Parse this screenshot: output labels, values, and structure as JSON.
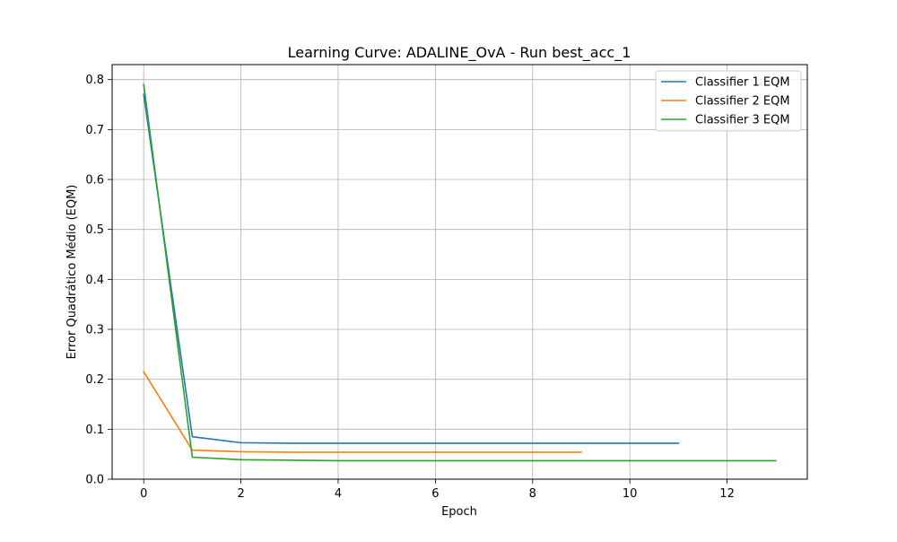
{
  "chart_data": {
    "type": "line",
    "title": "Learning Curve: ADALINE_OvA - Run best_acc_1",
    "xlabel": "Epoch",
    "ylabel": "Error Quadrático Médio (EQM)",
    "xlim": [
      -0.65,
      13.65
    ],
    "ylim": [
      0.0,
      0.83
    ],
    "xticks": [
      0,
      2,
      4,
      6,
      8,
      10,
      12
    ],
    "xtick_labels": [
      "0",
      "2",
      "4",
      "6",
      "8",
      "10",
      "12"
    ],
    "yticks": [
      0.0,
      0.1,
      0.2,
      0.3,
      0.4,
      0.5,
      0.6,
      0.7,
      0.8
    ],
    "ytick_labels": [
      "0.0",
      "0.1",
      "0.2",
      "0.3",
      "0.4",
      "0.5",
      "0.6",
      "0.7",
      "0.8"
    ],
    "grid": true,
    "legend_position": "top-right",
    "series": [
      {
        "name": "Classifier 1 EQM",
        "color": "#1f77b4",
        "x": [
          0,
          1,
          2,
          3,
          4,
          5,
          6,
          7,
          8,
          9,
          10,
          11
        ],
        "y": [
          0.77,
          0.085,
          0.073,
          0.072,
          0.072,
          0.072,
          0.072,
          0.072,
          0.072,
          0.072,
          0.072,
          0.072
        ]
      },
      {
        "name": "Classifier 2 EQM",
        "color": "#ff7f0e",
        "x": [
          0,
          1,
          2,
          3,
          4,
          5,
          6,
          7,
          8,
          9
        ],
        "y": [
          0.215,
          0.058,
          0.055,
          0.054,
          0.054,
          0.054,
          0.054,
          0.054,
          0.054,
          0.054
        ]
      },
      {
        "name": "Classifier 3 EQM",
        "color": "#2ca02c",
        "x": [
          0,
          1,
          2,
          3,
          4,
          5,
          6,
          7,
          8,
          9,
          10,
          11,
          12,
          13
        ],
        "y": [
          0.79,
          0.044,
          0.039,
          0.038,
          0.037,
          0.037,
          0.037,
          0.037,
          0.037,
          0.037,
          0.037,
          0.037,
          0.037,
          0.037
        ]
      }
    ]
  }
}
